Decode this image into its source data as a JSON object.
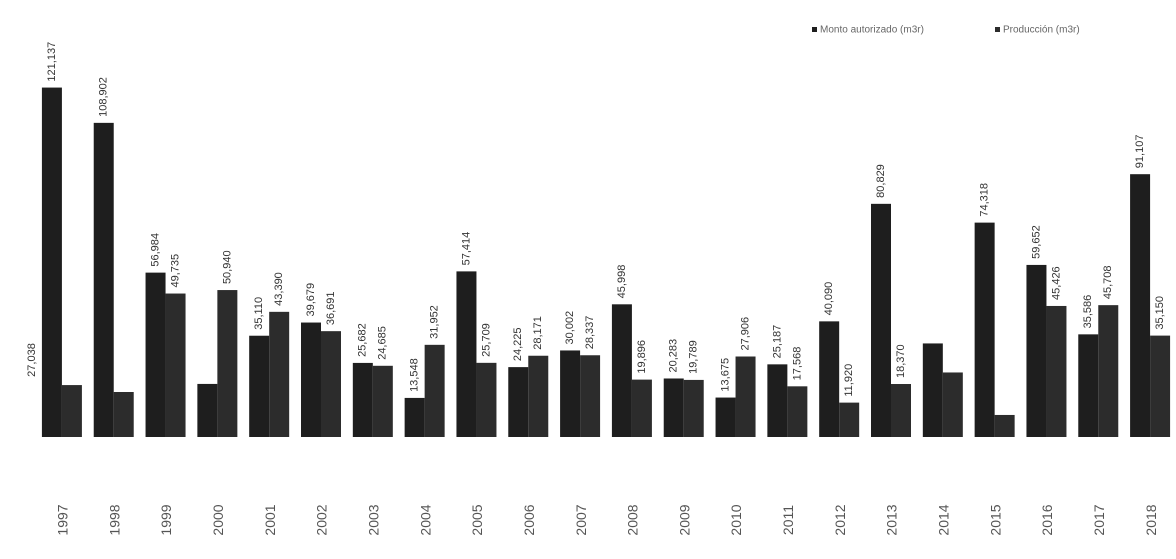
{
  "chart_data": {
    "type": "bar",
    "categories": [
      "1997",
      "1998",
      "1999",
      "2000",
      "2001",
      "2002",
      "2003",
      "2004",
      "2005",
      "2006",
      "2007",
      "2008",
      "2009",
      "2010",
      "2011",
      "2012",
      "2013",
      "2014",
      "2015",
      "2016",
      "2017",
      "2018"
    ],
    "series": [
      {
        "name": "Monto autorizado (m3r)",
        "color": "#1e1e1e",
        "values": [
          121137,
          108902,
          56984,
          18400,
          35110,
          39679,
          25682,
          13548,
          57414,
          24225,
          30002,
          45998,
          20283,
          13675,
          25187,
          40090,
          80829,
          32436,
          74318,
          59652,
          35586,
          91107
        ],
        "value_labels": [
          "121,137",
          "108,902",
          "56,984",
          null,
          "35,110",
          "39,679",
          "25,682",
          "13,548",
          "57,414",
          "24,225",
          "30,002",
          "45,998",
          "20,283",
          "13,675",
          "25,187",
          "40,090",
          "80,829",
          null,
          "74,318",
          "59,652",
          "35,586",
          "91,107"
        ]
      },
      {
        "name": "Producción (m3r)",
        "color": "#2c2c2c",
        "values": [
          18000,
          15600,
          49735,
          50940,
          43390,
          36691,
          24685,
          31952,
          25709,
          28171,
          28337,
          19896,
          19789,
          27906,
          17568,
          11920,
          18370,
          22370,
          7642,
          45426,
          45708,
          35150
        ],
        "value_labels": [
          null,
          null,
          "49,735",
          "50,940",
          "43,390",
          "36,691",
          "24,685",
          "31,952",
          "25,709",
          "28,171",
          "28,337",
          "19,896",
          "19,789",
          "27,906",
          "17,568",
          "11,920",
          "18,370",
          null,
          null,
          "45,426",
          "45,708",
          "35,150"
        ]
      }
    ],
    "side_label": "27,038",
    "ylim": [
      0,
      130000
    ]
  }
}
